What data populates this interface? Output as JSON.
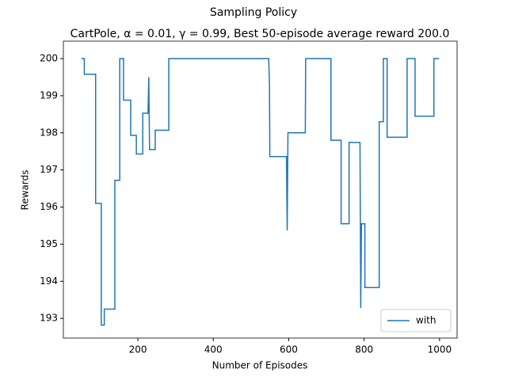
{
  "chart_data": {
    "type": "line",
    "suptitle": "Sampling Policy",
    "title": "CartPole, α = 0.01, γ = 0.99, Best 50-episode average reward 200.0",
    "xlabel": "Number of Episodes",
    "ylabel": "Rewards",
    "x": [
      50,
      58,
      58,
      88,
      88,
      103,
      103,
      111,
      111,
      139,
      139,
      152,
      152,
      162,
      162,
      181,
      181,
      196,
      196,
      213,
      213,
      227,
      229,
      231,
      246,
      246,
      282,
      282,
      547,
      549,
      550,
      594,
      596,
      598,
      644,
      645,
      712,
      712,
      739,
      739,
      760,
      760,
      789,
      791,
      793,
      802,
      802,
      840,
      840,
      851,
      851,
      861,
      861,
      914,
      914,
      935,
      935,
      985,
      985,
      999
    ],
    "series": [
      {
        "name": "with",
        "color": "#1f77b4",
        "values": [
          200,
          200,
          199.58,
          199.58,
          196.1,
          196.1,
          192.82,
          192.82,
          193.25,
          193.25,
          196.72,
          196.72,
          200,
          200,
          198.88,
          198.88,
          197.93,
          197.93,
          197.43,
          197.43,
          198.53,
          198.53,
          199.5,
          197.55,
          197.55,
          198.07,
          198.07,
          200,
          200,
          199.3,
          197.36,
          197.36,
          195.37,
          198,
          198,
          200,
          200,
          197.8,
          197.8,
          195.55,
          195.55,
          197.74,
          197.74,
          193.28,
          195.55,
          195.55,
          193.83,
          193.83,
          198.3,
          198.3,
          200,
          200,
          197.88,
          197.88,
          200,
          200,
          198.45,
          198.45,
          200,
          200
        ]
      }
    ],
    "xlim": [
      2.5,
      1046.5
    ],
    "xticks": [
      200,
      400,
      600,
      800,
      1000
    ],
    "ylim": [
      192.47,
      200.47
    ],
    "yticks": [
      193,
      194,
      195,
      196,
      197,
      198,
      199,
      200
    ],
    "legend": "lower right",
    "grid": false
  }
}
